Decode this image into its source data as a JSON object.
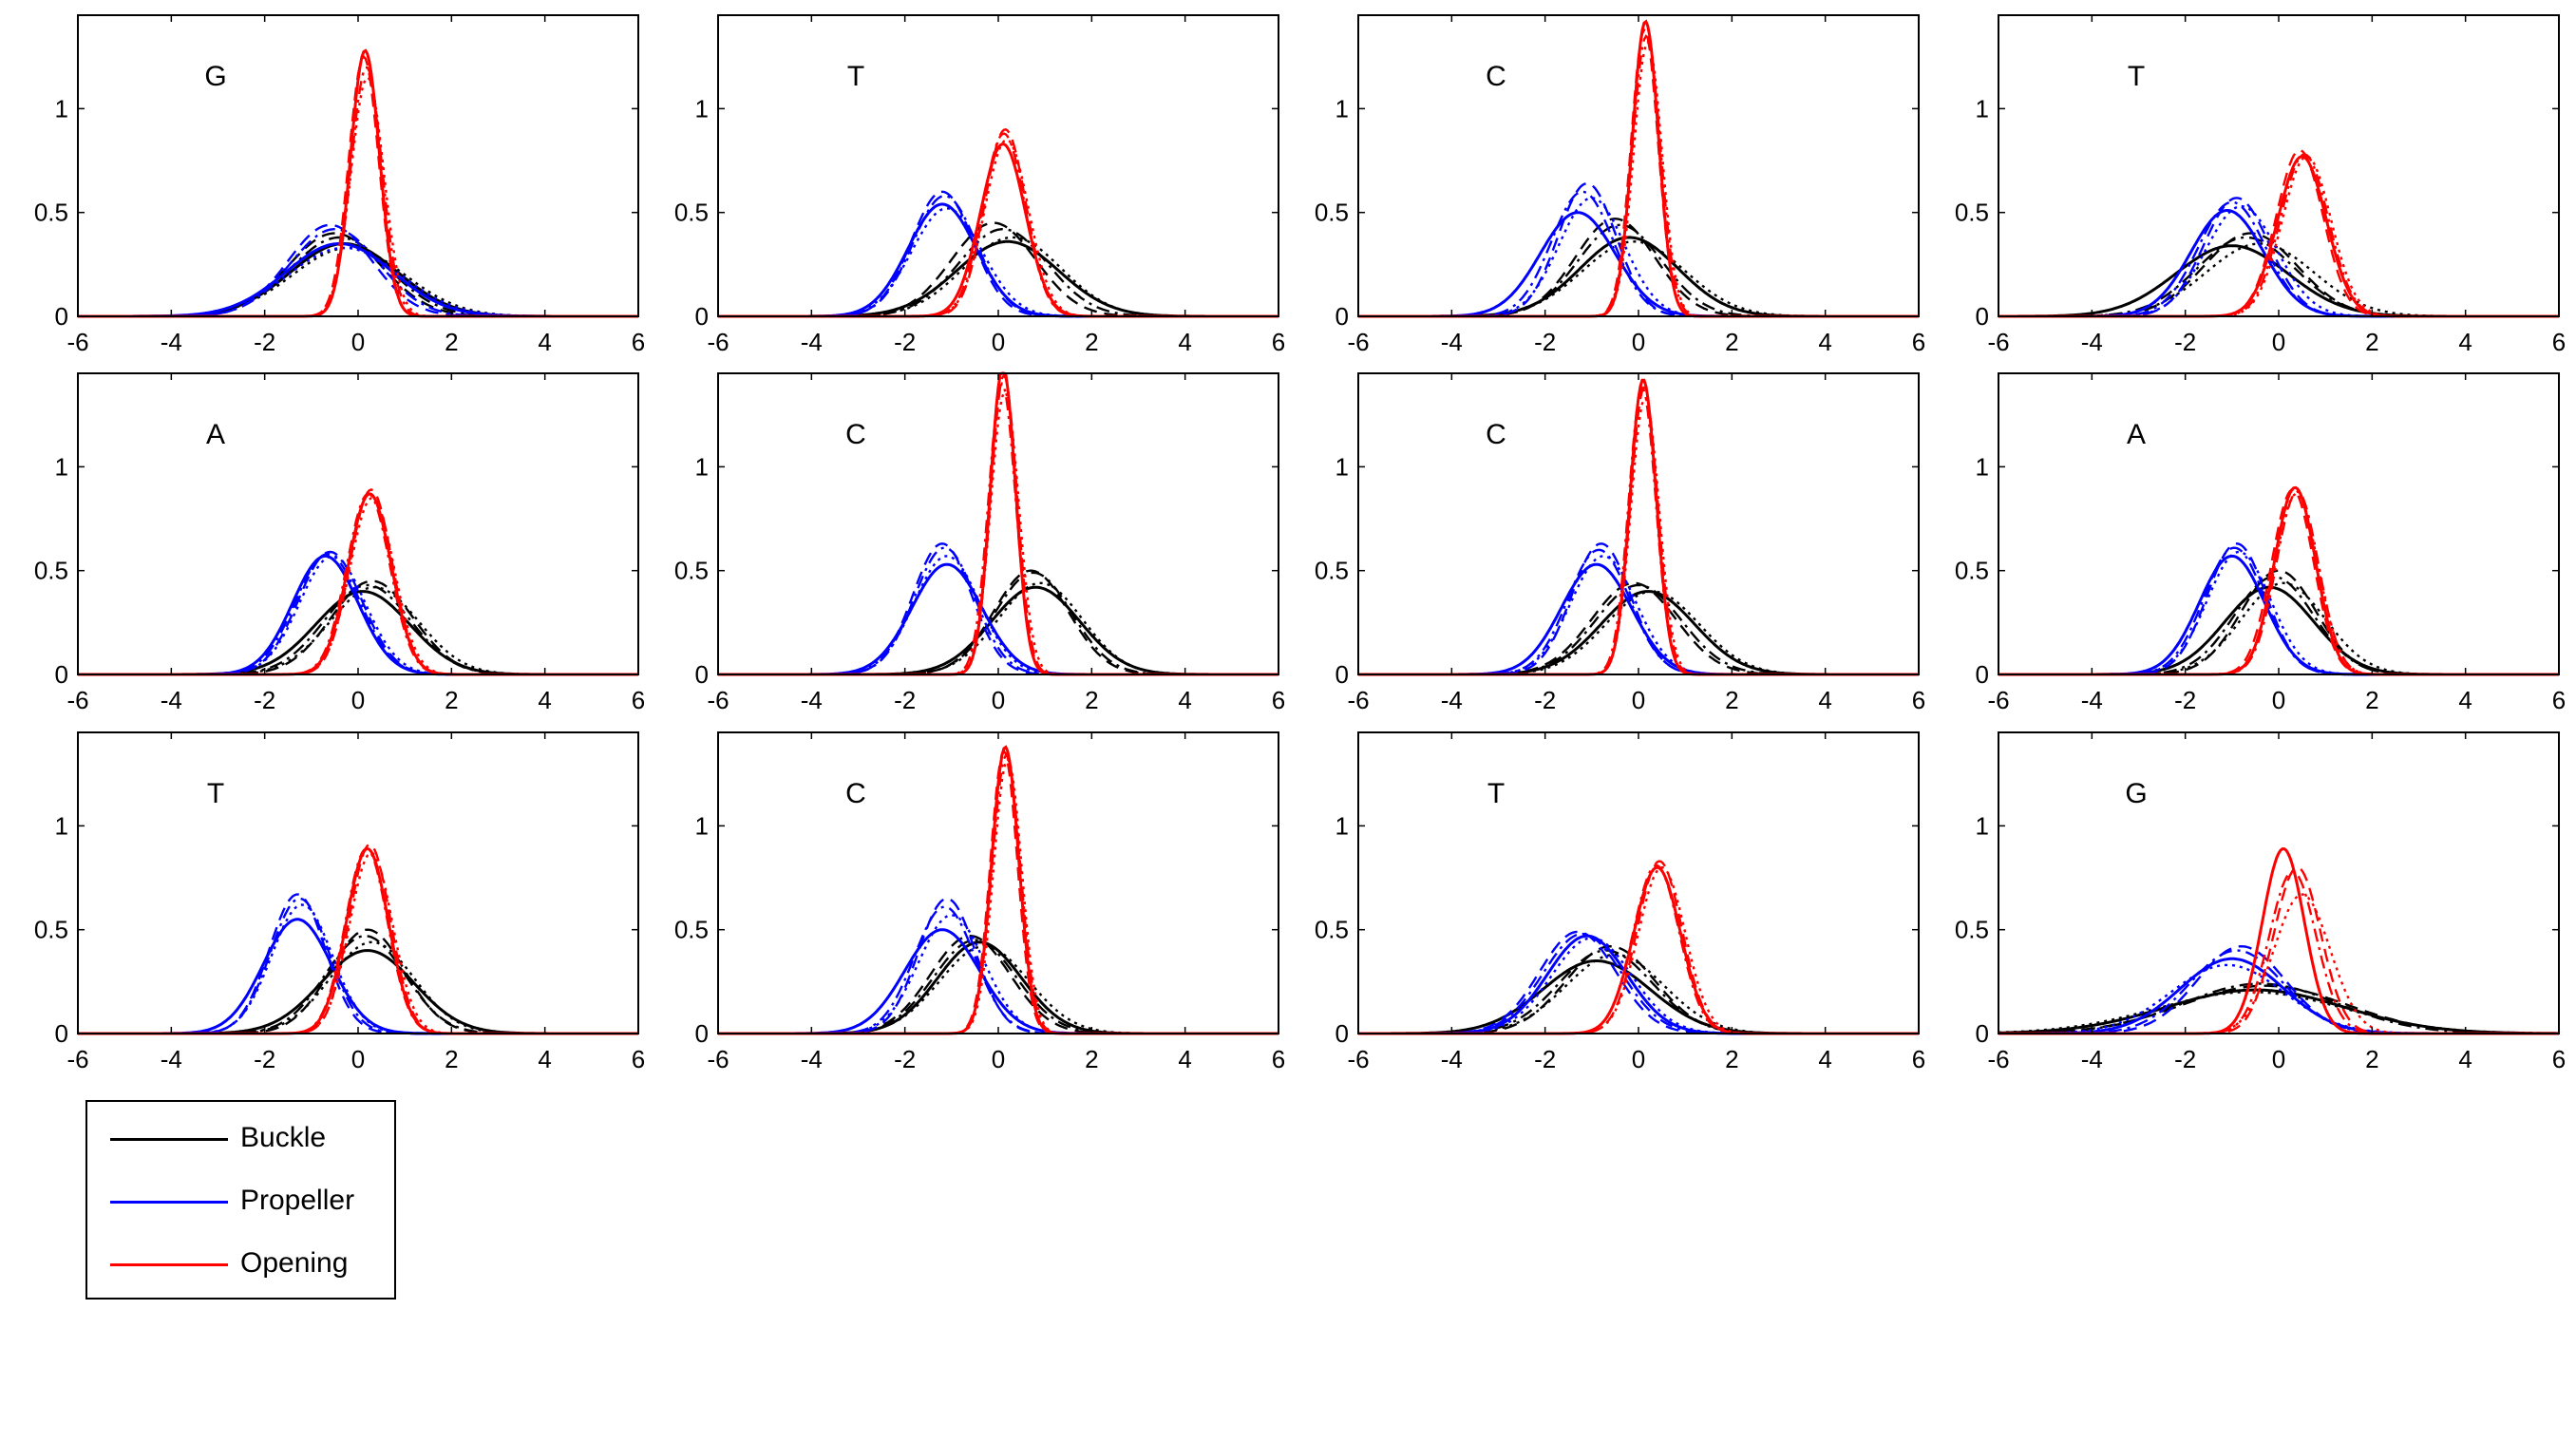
{
  "chart_data": {
    "type": "line",
    "layout": "3x4 grid of panels",
    "xlim": [
      -6,
      6
    ],
    "ylim": [
      0,
      1.45
    ],
    "xticks": [
      -6,
      -4,
      -2,
      0,
      2,
      4,
      6
    ],
    "yticks": [
      0,
      0.5,
      1
    ],
    "grid": false,
    "legend": {
      "placement": "bottom-left, below grid",
      "entries": [
        {
          "label": "Buckle",
          "color": "#000000"
        },
        {
          "label": "Propeller",
          "color": "#0000ff"
        },
        {
          "label": "Opening",
          "color": "#ff0000"
        }
      ]
    },
    "line_styles": [
      "solid",
      "dashed",
      "dashdot",
      "dotted"
    ],
    "panels": [
      {
        "label": "G",
        "curves": [
          {
            "param": "Buckle",
            "peaks": [
              [
                -0.3,
                1.15,
                0.35
              ],
              [
                -0.5,
                1.0,
                0.4
              ],
              [
                -0.4,
                1.05,
                0.38
              ],
              [
                -0.2,
                1.2,
                0.33
              ]
            ]
          },
          {
            "param": "Propeller",
            "peaks": [
              [
                -0.4,
                1.15,
                0.35
              ],
              [
                -0.6,
                0.9,
                0.44
              ],
              [
                -0.5,
                0.95,
                0.42
              ],
              [
                -0.3,
                1.2,
                0.33
              ]
            ]
          },
          {
            "param": "Opening",
            "peaks": [
              [
                0.15,
                0.31,
                1.28
              ],
              [
                0.12,
                0.32,
                1.25
              ],
              [
                0.18,
                0.33,
                1.2
              ],
              [
                0.2,
                0.35,
                1.15
              ]
            ]
          }
        ]
      },
      {
        "label": "T",
        "curves": [
          {
            "param": "Buckle",
            "peaks": [
              [
                0.2,
                1.1,
                0.36
              ],
              [
                -0.1,
                0.9,
                0.45
              ],
              [
                0.1,
                0.95,
                0.42
              ],
              [
                0.3,
                1.05,
                0.38
              ]
            ]
          },
          {
            "param": "Propeller",
            "peaks": [
              [
                -1.2,
                0.73,
                0.54
              ],
              [
                -1.2,
                0.66,
                0.6
              ],
              [
                -1.15,
                0.68,
                0.58
              ],
              [
                -1.1,
                0.75,
                0.52
              ]
            ]
          },
          {
            "param": "Opening",
            "peaks": [
              [
                0.1,
                0.48,
                0.83
              ],
              [
                0.15,
                0.44,
                0.9
              ],
              [
                0.12,
                0.45,
                0.88
              ],
              [
                0.18,
                0.47,
                0.85
              ]
            ]
          }
        ]
      },
      {
        "label": "C",
        "curves": [
          {
            "param": "Buckle",
            "peaks": [
              [
                -0.2,
                1.05,
                0.38
              ],
              [
                -0.5,
                0.85,
                0.47
              ],
              [
                -0.4,
                0.9,
                0.44
              ],
              [
                -0.1,
                1.1,
                0.36
              ]
            ]
          },
          {
            "param": "Propeller",
            "peaks": [
              [
                -1.3,
                0.8,
                0.5
              ],
              [
                -1.1,
                0.62,
                0.64
              ],
              [
                -1.2,
                0.66,
                0.6
              ],
              [
                -1.0,
                0.7,
                0.57
              ]
            ]
          },
          {
            "param": "Opening",
            "peaks": [
              [
                0.15,
                0.28,
                1.42
              ],
              [
                0.13,
                0.29,
                1.38
              ],
              [
                0.17,
                0.3,
                1.35
              ],
              [
                0.2,
                0.3,
                1.32
              ]
            ]
          }
        ]
      },
      {
        "label": "T",
        "curves": [
          {
            "param": "Buckle",
            "peaks": [
              [
                -1.0,
                1.2,
                0.34
              ],
              [
                -0.6,
                1.0,
                0.4
              ],
              [
                -0.7,
                1.05,
                0.38
              ],
              [
                -0.4,
                1.15,
                0.35
              ]
            ]
          },
          {
            "param": "Propeller",
            "peaks": [
              [
                -1.1,
                0.78,
                0.51
              ],
              [
                -0.9,
                0.7,
                0.57
              ],
              [
                -1.0,
                0.72,
                0.55
              ],
              [
                -0.8,
                0.76,
                0.53
              ]
            ]
          },
          {
            "param": "Opening",
            "peaks": [
              [
                0.5,
                0.52,
                0.77
              ],
              [
                0.45,
                0.5,
                0.8
              ],
              [
                0.55,
                0.51,
                0.78
              ],
              [
                0.6,
                0.52,
                0.77
              ]
            ]
          }
        ]
      },
      {
        "label": "A",
        "curves": [
          {
            "param": "Buckle",
            "peaks": [
              [
                0.1,
                1.0,
                0.4
              ],
              [
                0.3,
                0.88,
                0.45
              ],
              [
                0.2,
                0.92,
                0.43
              ],
              [
                0.35,
                0.95,
                0.42
              ]
            ]
          },
          {
            "param": "Propeller",
            "peaks": [
              [
                -0.7,
                0.7,
                0.57
              ],
              [
                -0.6,
                0.68,
                0.59
              ],
              [
                -0.65,
                0.69,
                0.58
              ],
              [
                -0.55,
                0.7,
                0.57
              ]
            ]
          },
          {
            "param": "Opening",
            "peaks": [
              [
                0.25,
                0.46,
                0.87
              ],
              [
                0.28,
                0.45,
                0.89
              ],
              [
                0.22,
                0.46,
                0.87
              ],
              [
                0.3,
                0.47,
                0.85
              ]
            ]
          }
        ]
      },
      {
        "label": "C",
        "curves": [
          {
            "param": "Buckle",
            "peaks": [
              [
                0.8,
                0.95,
                0.42
              ],
              [
                0.7,
                0.8,
                0.5
              ],
              [
                0.75,
                0.82,
                0.49
              ],
              [
                0.9,
                0.9,
                0.44
              ]
            ]
          },
          {
            "param": "Propeller",
            "peaks": [
              [
                -1.1,
                0.75,
                0.53
              ],
              [
                -1.2,
                0.63,
                0.63
              ],
              [
                -1.15,
                0.65,
                0.61
              ],
              [
                -1.1,
                0.7,
                0.57
              ]
            ]
          },
          {
            "param": "Opening",
            "peaks": [
              [
                0.1,
                0.27,
                1.48
              ],
              [
                0.12,
                0.28,
                1.44
              ],
              [
                0.08,
                0.29,
                1.4
              ],
              [
                0.14,
                0.3,
                1.36
              ]
            ]
          }
        ]
      },
      {
        "label": "C",
        "curves": [
          {
            "param": "Buckle",
            "peaks": [
              [
                0.2,
                1.0,
                0.4
              ],
              [
                -0.1,
                0.9,
                0.44
              ],
              [
                0.0,
                0.92,
                0.43
              ],
              [
                0.3,
                1.0,
                0.4
              ]
            ]
          },
          {
            "param": "Propeller",
            "peaks": [
              [
                -0.9,
                0.75,
                0.53
              ],
              [
                -0.8,
                0.63,
                0.63
              ],
              [
                -0.85,
                0.66,
                0.6
              ],
              [
                -0.75,
                0.7,
                0.57
              ]
            ]
          },
          {
            "param": "Opening",
            "peaks": [
              [
                0.1,
                0.28,
                1.42
              ],
              [
                0.12,
                0.29,
                1.38
              ],
              [
                0.08,
                0.29,
                1.38
              ],
              [
                0.14,
                0.3,
                1.33
              ]
            ]
          }
        ]
      },
      {
        "label": "A",
        "curves": [
          {
            "param": "Buckle",
            "peaks": [
              [
                -0.2,
                0.95,
                0.42
              ],
              [
                0.0,
                0.8,
                0.5
              ],
              [
                -0.1,
                0.85,
                0.47
              ],
              [
                0.1,
                0.9,
                0.44
              ]
            ]
          },
          {
            "param": "Propeller",
            "peaks": [
              [
                -1.0,
                0.7,
                0.57
              ],
              [
                -0.9,
                0.63,
                0.63
              ],
              [
                -0.95,
                0.65,
                0.61
              ],
              [
                -0.85,
                0.68,
                0.59
              ]
            ]
          },
          {
            "param": "Opening",
            "peaks": [
              [
                0.35,
                0.44,
                0.9
              ],
              [
                0.3,
                0.45,
                0.89
              ],
              [
                0.4,
                0.45,
                0.88
              ],
              [
                0.38,
                0.46,
                0.87
              ]
            ]
          }
        ]
      },
      {
        "label": "T",
        "curves": [
          {
            "param": "Buckle",
            "peaks": [
              [
                0.2,
                1.0,
                0.4
              ],
              [
                0.2,
                0.8,
                0.5
              ],
              [
                0.15,
                0.85,
                0.47
              ],
              [
                0.3,
                0.9,
                0.44
              ]
            ]
          },
          {
            "param": "Propeller",
            "peaks": [
              [
                -1.3,
                0.73,
                0.55
              ],
              [
                -1.3,
                0.6,
                0.67
              ],
              [
                -1.25,
                0.62,
                0.65
              ],
              [
                -1.2,
                0.65,
                0.62
              ]
            ]
          },
          {
            "param": "Opening",
            "peaks": [
              [
                0.2,
                0.45,
                0.89
              ],
              [
                0.25,
                0.44,
                0.91
              ],
              [
                0.18,
                0.45,
                0.89
              ],
              [
                0.28,
                0.46,
                0.87
              ]
            ]
          }
        ]
      },
      {
        "label": "C",
        "curves": [
          {
            "param": "Buckle",
            "peaks": [
              [
                -0.4,
                0.9,
                0.44
              ],
              [
                -0.6,
                0.85,
                0.47
              ],
              [
                -0.5,
                0.88,
                0.45
              ],
              [
                -0.3,
                0.95,
                0.42
              ]
            ]
          },
          {
            "param": "Propeller",
            "peaks": [
              [
                -1.2,
                0.8,
                0.5
              ],
              [
                -1.1,
                0.61,
                0.65
              ],
              [
                -1.15,
                0.65,
                0.61
              ],
              [
                -1.0,
                0.7,
                0.57
              ]
            ]
          },
          {
            "param": "Opening",
            "peaks": [
              [
                0.15,
                0.29,
                1.38
              ],
              [
                0.12,
                0.29,
                1.36
              ],
              [
                0.17,
                0.3,
                1.34
              ],
              [
                0.2,
                0.3,
                1.32
              ]
            ]
          }
        ]
      },
      {
        "label": "T",
        "curves": [
          {
            "param": "Buckle",
            "peaks": [
              [
                -0.9,
                1.15,
                0.35
              ],
              [
                -0.6,
                0.95,
                0.42
              ],
              [
                -0.7,
                1.0,
                0.4
              ],
              [
                -0.5,
                1.05,
                0.38
              ]
            ]
          },
          {
            "param": "Propeller",
            "peaks": [
              [
                -1.1,
                0.85,
                0.47
              ],
              [
                -1.3,
                0.82,
                0.49
              ],
              [
                -1.2,
                0.84,
                0.48
              ],
              [
                -1.0,
                0.86,
                0.46
              ]
            ]
          },
          {
            "param": "Opening",
            "peaks": [
              [
                0.4,
                0.5,
                0.8
              ],
              [
                0.45,
                0.48,
                0.83
              ],
              [
                0.38,
                0.49,
                0.81
              ],
              [
                0.5,
                0.5,
                0.8
              ]
            ]
          }
        ]
      },
      {
        "label": "G",
        "curves": [
          {
            "param": "Buckle",
            "peaks": [
              [
                -0.5,
                1.9,
                0.21
              ],
              [
                -0.3,
                1.75,
                0.23
              ],
              [
                -0.4,
                1.65,
                0.24
              ],
              [
                -0.6,
                2.0,
                0.2
              ]
            ]
          },
          {
            "param": "Propeller",
            "peaks": [
              [
                -1.0,
                1.1,
                0.36
              ],
              [
                -0.8,
                0.95,
                0.42
              ],
              [
                -0.9,
                1.0,
                0.4
              ],
              [
                -1.1,
                1.2,
                0.33
              ]
            ]
          },
          {
            "param": "Opening",
            "peaks": [
              [
                0.1,
                0.45,
                0.89
              ],
              [
                0.4,
                0.5,
                0.8
              ],
              [
                0.3,
                0.5,
                0.78
              ],
              [
                0.5,
                0.6,
                0.67
              ]
            ]
          }
        ]
      }
    ]
  }
}
